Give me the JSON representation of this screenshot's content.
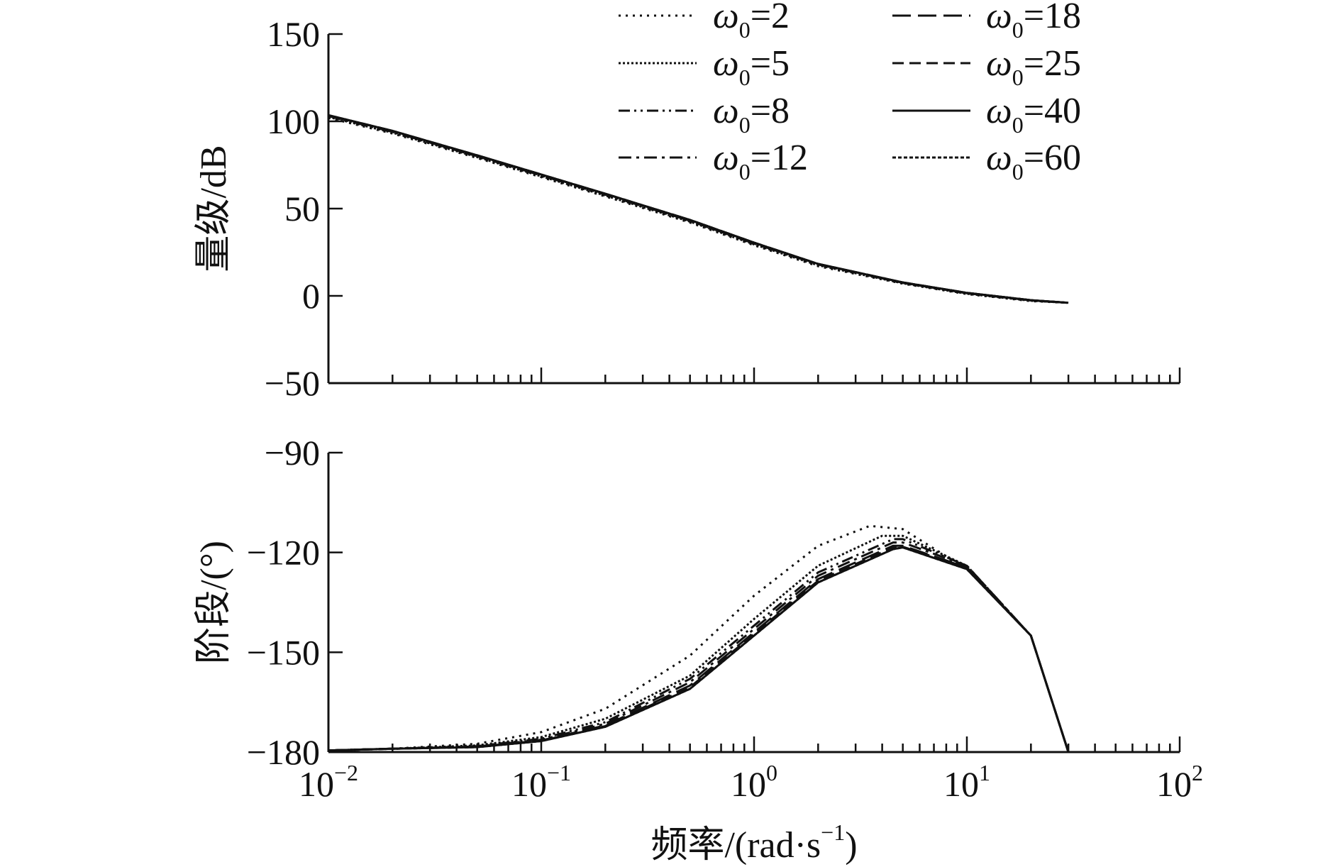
{
  "chart_data": [
    {
      "type": "line",
      "panel": "magnitude",
      "ylabel": "量级/dB",
      "xscale": "log",
      "xlim": [
        0.01,
        100
      ],
      "ylim": [
        -50,
        150
      ],
      "yticks": [
        "150",
        "100",
        "50",
        "0",
        "−50"
      ],
      "ytick_values": [
        150,
        100,
        50,
        0,
        -50
      ],
      "grid": false,
      "legend": {
        "placement": "top-right",
        "entries": [
          {
            "symbol": "ω",
            "sub": "0",
            "value": "=2"
          },
          {
            "symbol": "ω",
            "sub": "0",
            "value": "=5"
          },
          {
            "symbol": "ω",
            "sub": "0",
            "value": "=8"
          },
          {
            "symbol": "ω",
            "sub": "0",
            "value": "=12"
          },
          {
            "symbol": "ω",
            "sub": "0",
            "value": "=18"
          },
          {
            "symbol": "ω",
            "sub": "0",
            "value": "=25"
          },
          {
            "symbol": "ω",
            "sub": "0",
            "value": "=40"
          },
          {
            "symbol": "ω",
            "sub": "0",
            "value": "=60"
          }
        ]
      },
      "series": [
        {
          "name": "ω0=2",
          "style": "dotted",
          "x": [
            0.01,
            0.02,
            0.05,
            0.1,
            0.2,
            0.5,
            1,
            2,
            5,
            10,
            20,
            30
          ],
          "y": [
            102,
            93,
            79,
            68,
            57,
            42,
            29,
            17,
            7,
            1,
            -3,
            -4
          ]
        },
        {
          "name": "ω0=5",
          "style": "dense-dotted",
          "x": [
            0.01,
            0.02,
            0.05,
            0.1,
            0.2,
            0.5,
            1,
            2,
            5,
            10,
            20,
            30
          ],
          "y": [
            102.5,
            93.5,
            79.5,
            68.5,
            57.5,
            42.5,
            29.5,
            17.5,
            7.2,
            1.2,
            -2.8,
            -4
          ]
        },
        {
          "name": "ω0=8",
          "style": "dash-dot-dot",
          "x": [
            0.01,
            0.02,
            0.05,
            0.1,
            0.2,
            0.5,
            1,
            2,
            5,
            10,
            20,
            30
          ],
          "y": [
            103,
            94,
            80,
            69,
            58,
            43,
            30,
            18,
            7.5,
            1.5,
            -2.6,
            -4
          ]
        },
        {
          "name": "ω0=12",
          "style": "dash-dot",
          "x": [
            0.01,
            0.02,
            0.05,
            0.1,
            0.2,
            0.5,
            1,
            2,
            5,
            10,
            20,
            30
          ],
          "y": [
            103,
            94,
            80,
            69,
            58,
            43,
            30,
            18,
            7.5,
            1.5,
            -2.6,
            -4
          ]
        },
        {
          "name": "ω0=18",
          "style": "long-dash",
          "x": [
            0.01,
            0.02,
            0.05,
            0.1,
            0.2,
            0.5,
            1,
            2,
            5,
            10,
            20,
            30
          ],
          "y": [
            103.5,
            94.5,
            80.5,
            69.5,
            58.5,
            43.5,
            30.5,
            18.3,
            7.7,
            1.7,
            -2.5,
            -4
          ]
        },
        {
          "name": "ω0=25",
          "style": "dashed",
          "x": [
            0.01,
            0.02,
            0.05,
            0.1,
            0.2,
            0.5,
            1,
            2,
            5,
            10,
            20,
            30
          ],
          "y": [
            103.5,
            94.5,
            80.5,
            69.5,
            58.5,
            43.5,
            30.5,
            18.3,
            7.7,
            1.7,
            -2.5,
            -4
          ]
        },
        {
          "name": "ω0=40",
          "style": "solid",
          "x": [
            0.01,
            0.02,
            0.05,
            0.1,
            0.2,
            0.5,
            1,
            2,
            5,
            10,
            20,
            30
          ],
          "y": [
            103.5,
            94.5,
            80.5,
            69.5,
            58.5,
            43.5,
            30.5,
            18.3,
            7.7,
            1.7,
            -2.5,
            -4
          ]
        },
        {
          "name": "ω0=60",
          "style": "fine-dashed",
          "x": [
            0.01,
            0.02,
            0.05,
            0.1,
            0.2,
            0.5,
            1,
            2,
            5,
            10,
            20,
            30
          ],
          "y": [
            103.5,
            94.5,
            80.5,
            69.5,
            58.5,
            43.5,
            30.5,
            18.3,
            7.7,
            1.7,
            -2.5,
            -4
          ]
        }
      ]
    },
    {
      "type": "line",
      "panel": "phase",
      "xlabel_main": "频率/(rad·s",
      "xlabel_sup": "−1",
      "xlabel_end": ")",
      "ylabel": "阶段/(°)",
      "xscale": "log",
      "xlim": [
        0.01,
        100
      ],
      "ylim": [
        -180,
        -90
      ],
      "xticks": [
        {
          "base": "10",
          "exp": "−2"
        },
        {
          "base": "10",
          "exp": "−1"
        },
        {
          "base": "10",
          "exp": "0"
        },
        {
          "base": "10",
          "exp": "1"
        },
        {
          "base": "10",
          "exp": "2"
        }
      ],
      "xtick_values": [
        0.01,
        0.1,
        1,
        10,
        100
      ],
      "yticks": [
        "−90",
        "−120",
        "−150",
        "−180"
      ],
      "ytick_values": [
        -90,
        -120,
        -150,
        -180
      ],
      "grid": false,
      "series": [
        {
          "name": "ω0=2",
          "style": "dotted",
          "x": [
            0.01,
            0.02,
            0.05,
            0.1,
            0.2,
            0.5,
            1,
            2,
            3.5,
            5,
            10,
            20,
            30
          ],
          "y": [
            -179.5,
            -179,
            -177.5,
            -174,
            -167,
            -151,
            -133,
            -118,
            -112,
            -113,
            -125,
            -145,
            -180
          ]
        },
        {
          "name": "ω0=5",
          "style": "dense-dotted",
          "x": [
            0.01,
            0.02,
            0.05,
            0.1,
            0.2,
            0.5,
            1,
            2,
            4,
            5,
            10,
            20,
            30
          ],
          "y": [
            -179.5,
            -179,
            -178,
            -175.5,
            -170,
            -157,
            -140,
            -124,
            -115,
            -115,
            -124,
            -145,
            -180
          ]
        },
        {
          "name": "ω0=8",
          "style": "dash-dot-dot",
          "x": [
            0.01,
            0.02,
            0.05,
            0.1,
            0.2,
            0.5,
            1,
            2,
            4.5,
            5,
            10,
            20,
            30
          ],
          "y": [
            -179.5,
            -179,
            -178.2,
            -176,
            -171,
            -158,
            -142,
            -126,
            -116,
            -116,
            -124,
            -145,
            -180
          ]
        },
        {
          "name": "ω0=12",
          "style": "dash-dot",
          "x": [
            0.01,
            0.02,
            0.05,
            0.1,
            0.2,
            0.5,
            1,
            2,
            4.5,
            5,
            10,
            20,
            30
          ],
          "y": [
            -179.5,
            -179,
            -178.3,
            -176.3,
            -171.5,
            -159,
            -143,
            -127,
            -117,
            -117,
            -124,
            -145,
            -180
          ]
        },
        {
          "name": "ω0=18",
          "style": "long-dash",
          "x": [
            0.01,
            0.02,
            0.05,
            0.1,
            0.2,
            0.5,
            1,
            2,
            4.5,
            5,
            10,
            20,
            30
          ],
          "y": [
            -179.5,
            -179,
            -178.4,
            -176.5,
            -172,
            -160,
            -144,
            -128,
            -118,
            -118,
            -124.5,
            -145,
            -180
          ]
        },
        {
          "name": "ω0=25",
          "style": "dashed",
          "x": [
            0.01,
            0.02,
            0.05,
            0.1,
            0.2,
            0.5,
            1,
            2,
            4.5,
            5,
            10,
            20,
            30
          ],
          "y": [
            -179.5,
            -179,
            -178.5,
            -176.6,
            -172.2,
            -160.5,
            -144.5,
            -128.5,
            -118.5,
            -118.3,
            -124.5,
            -145,
            -180
          ]
        },
        {
          "name": "ω0=40",
          "style": "solid",
          "x": [
            0.01,
            0.02,
            0.05,
            0.1,
            0.2,
            0.5,
            1,
            2,
            4.5,
            5,
            10,
            20,
            30
          ],
          "y": [
            -179.5,
            -179,
            -178.5,
            -176.7,
            -172.4,
            -161,
            -145,
            -129,
            -119,
            -118.5,
            -125,
            -145,
            -180
          ]
        },
        {
          "name": "ω0=60",
          "style": "fine-dashed",
          "x": [
            0.01,
            0.02,
            0.05,
            0.1,
            0.2,
            0.5,
            1,
            2,
            4.5,
            5,
            10,
            20,
            30
          ],
          "y": [
            -179.5,
            -179,
            -178.5,
            -176.7,
            -172.4,
            -161,
            -145,
            -129,
            -119,
            -118.5,
            -125,
            -145,
            -180
          ]
        }
      ]
    }
  ]
}
